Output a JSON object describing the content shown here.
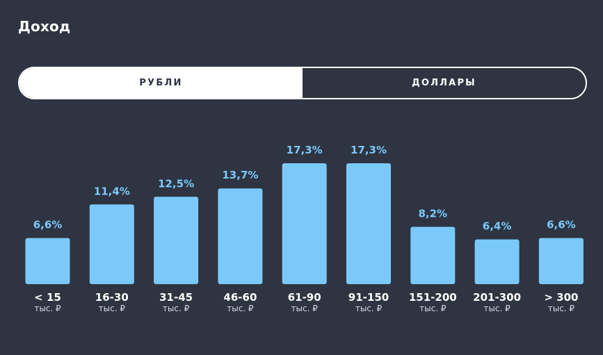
{
  "header": {
    "title": "Доход"
  },
  "currency_toggle": {
    "options": [
      {
        "label": "РУБЛИ",
        "active": true
      },
      {
        "label": "ДОЛЛАРЫ",
        "active": false
      }
    ]
  },
  "colors": {
    "background": "#2e3441",
    "bar": "#7bc9fb",
    "value_label": "#7bc9fb",
    "text": "#ffffff"
  },
  "chart_data": {
    "type": "bar",
    "categories": [
      "< 15",
      "16-30",
      "31-45",
      "46-60",
      "61-90",
      "91-150",
      "151-200",
      "201-300",
      "> 300"
    ],
    "category_units": [
      "тыс. ₽",
      "тыс. ₽",
      "тыс. ₽",
      "тыс. ₽",
      "тыс. ₽",
      "тыс. ₽",
      "тыс. ₽",
      "тыс. ₽",
      "тыс. ₽"
    ],
    "values": [
      6.6,
      11.4,
      12.5,
      13.7,
      17.3,
      17.3,
      8.2,
      6.4,
      6.6
    ],
    "value_labels": [
      "6,6%",
      "11,4%",
      "12,5%",
      "13,7%",
      "17,3%",
      "17,3%",
      "8,2%",
      "6,4%",
      "6,6%"
    ],
    "title": "",
    "xlabel": "",
    "ylabel": "",
    "ylim": [
      0,
      17.3
    ],
    "grid": false,
    "legend": "none"
  }
}
